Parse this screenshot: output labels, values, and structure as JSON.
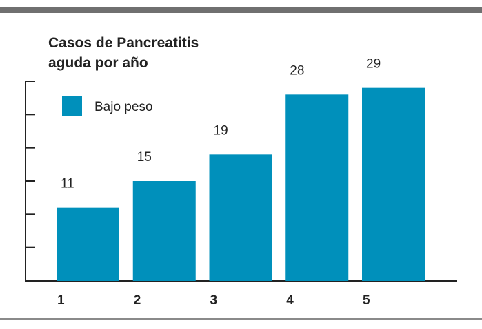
{
  "colors": {
    "bar": "#0090bb",
    "axis": "#222222",
    "rule": "#707070"
  },
  "chart_data": {
    "type": "bar",
    "title_lines": [
      "Casos de Pancreatitis",
      "aguda por año"
    ],
    "categories": [
      "1",
      "2",
      "3",
      "4",
      "5"
    ],
    "series": [
      {
        "name": "Bajo peso",
        "values": [
          11,
          15,
          19,
          28,
          29
        ]
      }
    ],
    "xlabel": "",
    "ylabel": "",
    "ylim": [
      0,
      30
    ],
    "y_ticks": [
      0,
      5,
      10,
      15,
      20,
      25,
      30
    ],
    "y_tick_labels_shown": false,
    "data_labels": true,
    "grid": false,
    "legend": "top-left"
  }
}
